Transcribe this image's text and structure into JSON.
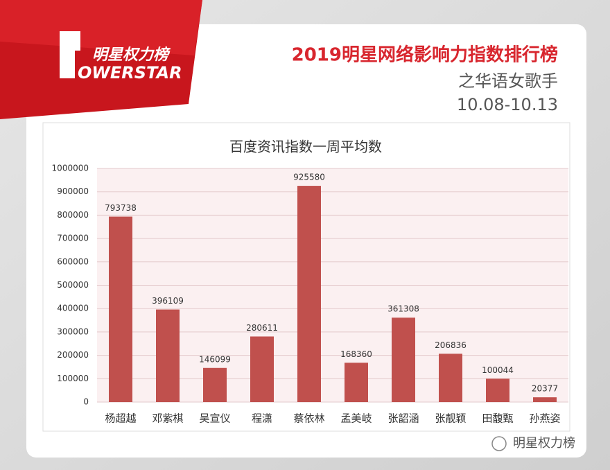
{
  "header": {
    "logo_text": "明星权力榜",
    "logo_word": "OWERSTAR",
    "title": "2019明星网络影响力指数排行榜",
    "subtitle": "之华语女歌手",
    "date": "10.08-10.13"
  },
  "watermark": "明星权力榜",
  "chart_data": {
    "type": "bar",
    "title": "百度资讯指数一周平均数",
    "categories": [
      "杨超越",
      "邓紫棋",
      "吴宣仪",
      "程潇",
      "蔡依林",
      "孟美岐",
      "张韶涵",
      "张靓颖",
      "田馥甄",
      "孙燕姿"
    ],
    "values": [
      793738,
      396109,
      146099,
      280611,
      925580,
      168360,
      361308,
      206836,
      100044,
      20377
    ],
    "color": "#c0504d",
    "ylim": [
      0,
      1000000
    ],
    "yticks": [
      0,
      100000,
      200000,
      300000,
      400000,
      500000,
      600000,
      700000,
      800000,
      900000,
      1000000
    ],
    "grid": true
  }
}
